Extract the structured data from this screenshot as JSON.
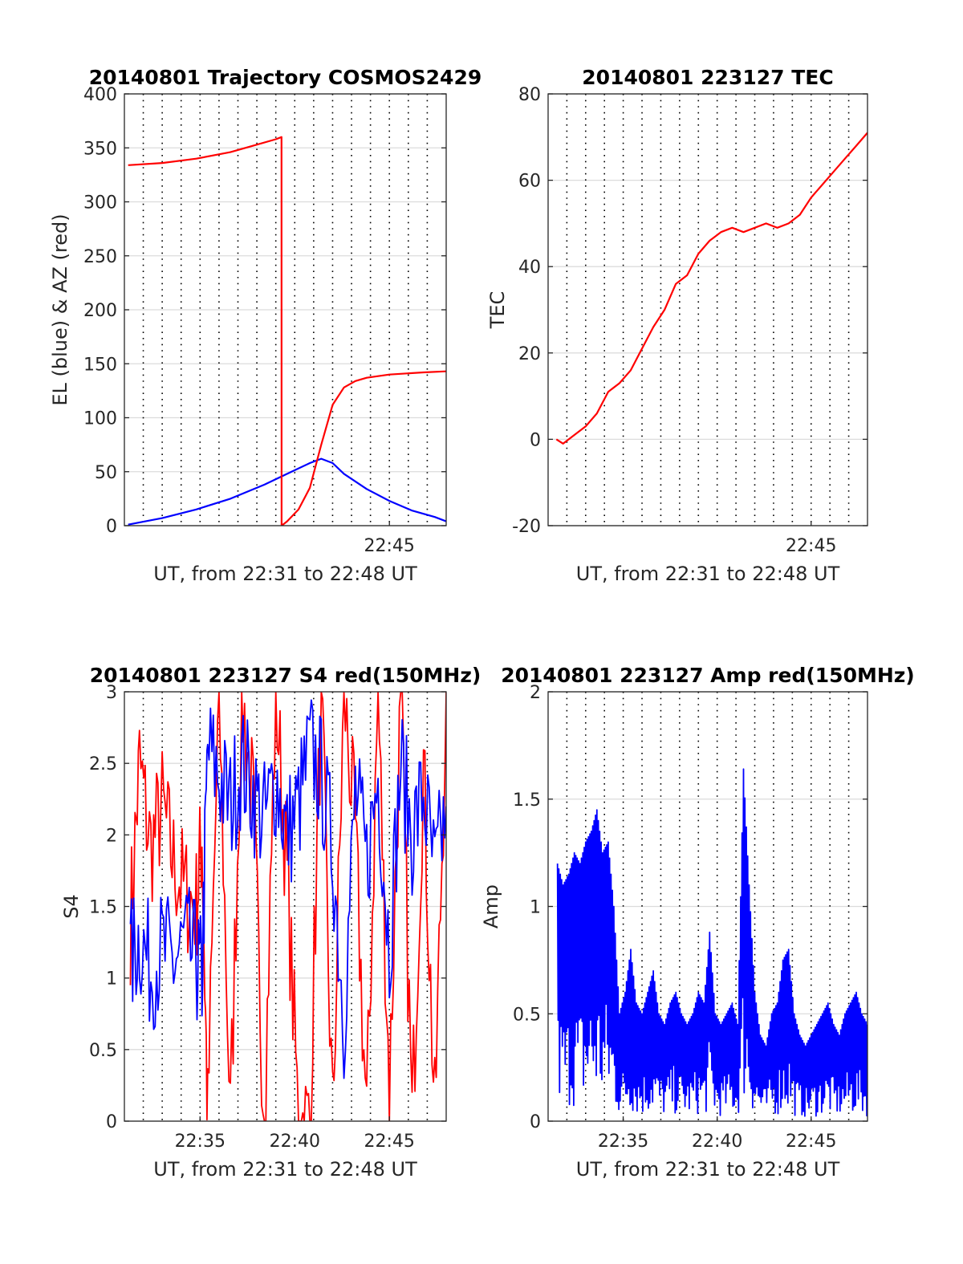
{
  "chart_data": [
    {
      "type": "line",
      "title": "20140801 Trajectory COSMOS2429",
      "xlabel": "UT, from 22:31 to 22:48 UT",
      "ylabel": "EL (blue) & AZ (red)",
      "xlim": [
        22.5167,
        22.8
      ],
      "ylim": [
        0,
        400
      ],
      "yticks": [
        0,
        50,
        100,
        150,
        200,
        250,
        300,
        350,
        400
      ],
      "xtick_labels": [
        {
          "x": 22.75,
          "label": "22:45"
        }
      ],
      "grid": true,
      "series": [
        {
          "color": "#0000ff",
          "x": [
            22.52,
            22.55,
            22.58,
            22.61,
            22.64,
            22.66,
            22.68,
            22.69,
            22.7,
            22.71,
            22.73,
            22.75,
            22.77,
            22.79,
            22.8
          ],
          "y": [
            1,
            7,
            15,
            25,
            38,
            48,
            58,
            62,
            58,
            48,
            34,
            23,
            14,
            8,
            4
          ]
        },
        {
          "color": "#ff0000",
          "x": [
            22.52,
            22.55,
            22.58,
            22.61,
            22.63,
            22.65,
            22.655,
            22.6551,
            22.66,
            22.67,
            22.68,
            22.69,
            22.7,
            22.71,
            22.72,
            22.73,
            22.75,
            22.78,
            22.8
          ],
          "y": [
            334,
            336,
            340,
            346,
            352,
            358,
            360,
            0,
            4,
            15,
            35,
            75,
            112,
            128,
            134,
            137,
            140,
            142,
            143
          ]
        }
      ]
    },
    {
      "type": "line",
      "title": "20140801 223127 TEC",
      "xlabel": "UT, from 22:31 to 22:48 UT",
      "ylabel": "TEC",
      "xlim": [
        22.5167,
        22.8
      ],
      "ylim": [
        -20,
        80
      ],
      "yticks": [
        -20,
        0,
        20,
        40,
        60,
        80
      ],
      "xtick_labels": [
        {
          "x": 22.75,
          "label": "22:45"
        }
      ],
      "grid": true,
      "series": [
        {
          "color": "#ff0000",
          "x": [
            22.524,
            22.53,
            22.54,
            22.55,
            22.56,
            22.57,
            22.58,
            22.59,
            22.6,
            22.61,
            22.62,
            22.63,
            22.64,
            22.65,
            22.66,
            22.67,
            22.68,
            22.69,
            22.7,
            22.71,
            22.72,
            22.73,
            22.74,
            22.75,
            22.76,
            22.77,
            22.78,
            22.79,
            22.8
          ],
          "y": [
            0,
            -1,
            1,
            3,
            6,
            11,
            13,
            16,
            21,
            26,
            30,
            36,
            38,
            43,
            46,
            48,
            49,
            48,
            49,
            50,
            49,
            50,
            52,
            56,
            59,
            62,
            65,
            68,
            71
          ]
        }
      ]
    },
    {
      "type": "line",
      "title": "20140801 223127 S4 red(150MHz)",
      "xlabel": "UT, from 22:31 to 22:48 UT",
      "ylabel": "S4",
      "xlim": [
        22.5167,
        22.8
      ],
      "ylim": [
        0,
        3
      ],
      "yticks": [
        0,
        0.5,
        1,
        1.5,
        2,
        2.5,
        3
      ],
      "xtick_labels": [
        {
          "x": 22.5833,
          "label": "22:35"
        },
        {
          "x": 22.6667,
          "label": "22:40"
        },
        {
          "x": 22.75,
          "label": "22:45"
        }
      ],
      "grid": true,
      "series": [
        {
          "color": "#ff0000",
          "x": [
            22.522,
            22.53,
            22.54,
            22.55,
            22.56,
            22.57,
            22.58,
            22.585,
            22.59,
            22.6,
            22.61,
            22.62,
            22.63,
            22.64,
            22.65,
            22.66,
            22.67,
            22.68,
            22.69,
            22.7,
            22.71,
            22.72,
            22.73,
            22.74,
            22.75,
            22.76,
            22.77,
            22.78,
            22.79,
            22.8
          ],
          "y": [
            1.4,
            2.5,
            1.9,
            2.2,
            1.8,
            1.6,
            1.5,
            2.0,
            0.0,
            3.0,
            0.0,
            3.0,
            2.2,
            0.0,
            3.0,
            1.7,
            0.0,
            0.0,
            3.0,
            0.0,
            3.0,
            2.0,
            0.0,
            3.0,
            0.2,
            3.0,
            0.0,
            2.5,
            0.0,
            3.0
          ]
        },
        {
          "color": "#0000ff",
          "x": [
            22.522,
            22.53,
            22.54,
            22.55,
            22.56,
            22.57,
            22.58,
            22.585,
            22.59,
            22.6,
            22.61,
            22.62,
            22.63,
            22.64,
            22.65,
            22.66,
            22.67,
            22.68,
            22.69,
            22.7,
            22.71,
            22.72,
            22.73,
            22.74,
            22.75,
            22.76,
            22.77,
            22.78,
            22.79,
            22.8
          ],
          "y": [
            1.1,
            1.3,
            1.05,
            1.2,
            1.1,
            1.25,
            1.1,
            1.0,
            2.6,
            2.4,
            2.2,
            2.5,
            2.3,
            2.1,
            2.4,
            2.0,
            2.2,
            2.6,
            2.4,
            1.9,
            0.7,
            2.3,
            1.8,
            2.4,
            1.2,
            2.5,
            2.0,
            2.3,
            1.7,
            2.2
          ]
        }
      ]
    },
    {
      "type": "line",
      "title": "20140801 223127 Amp red(150MHz)",
      "xlabel": "UT, from 22:31 to 22:48 UT",
      "ylabel": "Amp",
      "xlim": [
        22.5167,
        22.8
      ],
      "ylim": [
        0,
        2
      ],
      "yticks": [
        0,
        0.5,
        1,
        1.5,
        2
      ],
      "xtick_labels": [
        {
          "x": 22.5833,
          "label": "22:35"
        },
        {
          "x": 22.6667,
          "label": "22:40"
        },
        {
          "x": 22.75,
          "label": "22:45"
        }
      ],
      "grid": true,
      "series": [
        {
          "color": "#0000ff",
          "x": [
            22.525,
            22.53,
            22.535,
            22.54,
            22.545,
            22.55,
            22.555,
            22.56,
            22.565,
            22.57,
            22.575,
            22.58,
            22.585,
            22.59,
            22.595,
            22.6,
            22.605,
            22.61,
            22.615,
            22.62,
            22.625,
            22.63,
            22.635,
            22.64,
            22.645,
            22.65,
            22.655,
            22.66,
            22.665,
            22.67,
            22.675,
            22.68,
            22.685,
            22.69,
            22.695,
            22.7,
            22.705,
            22.71,
            22.715,
            22.72,
            22.725,
            22.73,
            22.735,
            22.74,
            22.745,
            22.75,
            22.755,
            22.76,
            22.765,
            22.77,
            22.775,
            22.78,
            22.785,
            22.79,
            22.795,
            22.8
          ],
          "y": [
            1.2,
            1.1,
            1.15,
            1.25,
            1.2,
            1.3,
            1.35,
            1.45,
            1.25,
            1.3,
            1.0,
            0.5,
            0.6,
            0.8,
            0.55,
            0.5,
            0.6,
            0.7,
            0.5,
            0.45,
            0.55,
            0.6,
            0.5,
            0.45,
            0.5,
            0.6,
            0.55,
            0.88,
            0.5,
            0.45,
            0.5,
            0.55,
            0.45,
            1.64,
            1.1,
            0.6,
            0.4,
            0.35,
            0.5,
            0.55,
            0.75,
            0.8,
            0.5,
            0.4,
            0.35,
            0.4,
            0.45,
            0.5,
            0.55,
            0.45,
            0.4,
            0.5,
            0.55,
            0.6,
            0.5,
            0.45
          ]
        }
      ]
    }
  ]
}
